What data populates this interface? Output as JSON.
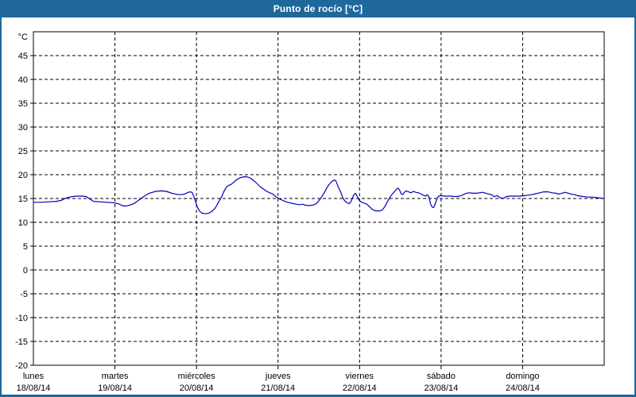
{
  "window": {
    "title": "Punto de rocío [°C]"
  },
  "colors": {
    "chrome": "#1e689c",
    "title_text": "#ffffff",
    "background": "#ffffff",
    "axis": "#000000",
    "grid": "#000000",
    "text": "#000000",
    "line": "#0000bb"
  },
  "chart_data": {
    "type": "line",
    "title": "Punto de rocío [°C]",
    "y_unit": "°C",
    "ylim": [
      -20,
      50
    ],
    "yticks": [
      45,
      40,
      35,
      30,
      25,
      20,
      15,
      10,
      5,
      0,
      -5,
      -10,
      -15,
      -20
    ],
    "xlim_days": [
      0,
      7
    ],
    "grid": "dashed",
    "legend": "none",
    "days": [
      {
        "name": "lunes",
        "date": "18/08/14"
      },
      {
        "name": "martes",
        "date": "19/08/14"
      },
      {
        "name": "miércoles",
        "date": "20/08/14"
      },
      {
        "name": "jueves",
        "date": "21/08/14"
      },
      {
        "name": "viernes",
        "date": "22/08/14"
      },
      {
        "name": "sábado",
        "date": "23/08/14"
      },
      {
        "name": "domingo",
        "date": "24/08/14"
      }
    ],
    "series": [
      {
        "name": "Punto de rocío",
        "color": "#0000bb",
        "points": [
          [
            0.0,
            14.2
          ],
          [
            0.08,
            14.2
          ],
          [
            0.18,
            14.3
          ],
          [
            0.28,
            14.4
          ],
          [
            0.34,
            14.6
          ],
          [
            0.4,
            15.1
          ],
          [
            0.47,
            15.4
          ],
          [
            0.54,
            15.5
          ],
          [
            0.6,
            15.5
          ],
          [
            0.65,
            15.4
          ],
          [
            0.69,
            14.9
          ],
          [
            0.74,
            14.4
          ],
          [
            0.82,
            14.3
          ],
          [
            0.91,
            14.2
          ],
          [
            0.99,
            14.1
          ],
          [
            1.04,
            13.9
          ],
          [
            1.09,
            13.5
          ],
          [
            1.13,
            13.4
          ],
          [
            1.18,
            13.6
          ],
          [
            1.23,
            13.9
          ],
          [
            1.28,
            14.5
          ],
          [
            1.33,
            15.1
          ],
          [
            1.37,
            15.6
          ],
          [
            1.42,
            16.1
          ],
          [
            1.5,
            16.5
          ],
          [
            1.57,
            16.6
          ],
          [
            1.63,
            16.5
          ],
          [
            1.7,
            16.1
          ],
          [
            1.75,
            15.9
          ],
          [
            1.8,
            15.8
          ],
          [
            1.85,
            15.9
          ],
          [
            1.9,
            16.3
          ],
          [
            1.93,
            16.4
          ],
          [
            1.95,
            16.2
          ],
          [
            1.98,
            14.8
          ],
          [
            2.01,
            13.2
          ],
          [
            2.04,
            12.3
          ],
          [
            2.07,
            11.9
          ],
          [
            2.11,
            11.8
          ],
          [
            2.15,
            11.9
          ],
          [
            2.19,
            12.3
          ],
          [
            2.23,
            13.0
          ],
          [
            2.27,
            14.2
          ],
          [
            2.31,
            15.4
          ],
          [
            2.34,
            16.6
          ],
          [
            2.37,
            17.5
          ],
          [
            2.4,
            17.8
          ],
          [
            2.42,
            17.9
          ],
          [
            2.45,
            18.3
          ],
          [
            2.48,
            18.8
          ],
          [
            2.51,
            19.1
          ],
          [
            2.54,
            19.4
          ],
          [
            2.57,
            19.5
          ],
          [
            2.6,
            19.6
          ],
          [
            2.63,
            19.5
          ],
          [
            2.66,
            19.3
          ],
          [
            2.69,
            18.9
          ],
          [
            2.72,
            18.5
          ],
          [
            2.75,
            18.0
          ],
          [
            2.78,
            17.5
          ],
          [
            2.82,
            17.0
          ],
          [
            2.86,
            16.5
          ],
          [
            2.9,
            16.2
          ],
          [
            2.94,
            15.9
          ],
          [
            2.97,
            15.4
          ],
          [
            3.02,
            14.9
          ],
          [
            3.07,
            14.5
          ],
          [
            3.12,
            14.2
          ],
          [
            3.17,
            14.0
          ],
          [
            3.22,
            13.8
          ],
          [
            3.26,
            13.7
          ],
          [
            3.3,
            13.8
          ],
          [
            3.34,
            13.6
          ],
          [
            3.38,
            13.5
          ],
          [
            3.42,
            13.6
          ],
          [
            3.46,
            13.8
          ],
          [
            3.49,
            14.3
          ],
          [
            3.53,
            15.2
          ],
          [
            3.57,
            16.3
          ],
          [
            3.6,
            17.3
          ],
          [
            3.63,
            18.0
          ],
          [
            3.65,
            18.4
          ],
          [
            3.67,
            18.7
          ],
          [
            3.69,
            18.9
          ],
          [
            3.71,
            18.7
          ],
          [
            3.73,
            17.8
          ],
          [
            3.75,
            17.0
          ],
          [
            3.77,
            16.3
          ],
          [
            3.79,
            15.3
          ],
          [
            3.81,
            14.7
          ],
          [
            3.83,
            14.3
          ],
          [
            3.85,
            14.1
          ],
          [
            3.87,
            13.9
          ],
          [
            3.89,
            14.2
          ],
          [
            3.91,
            15.0
          ],
          [
            3.93,
            15.8
          ],
          [
            3.95,
            16.1
          ],
          [
            3.97,
            15.5
          ],
          [
            3.99,
            14.8
          ],
          [
            4.01,
            14.4
          ],
          [
            4.03,
            14.2
          ],
          [
            4.06,
            14.0
          ],
          [
            4.09,
            13.8
          ],
          [
            4.12,
            13.3
          ],
          [
            4.15,
            12.8
          ],
          [
            4.18,
            12.5
          ],
          [
            4.21,
            12.4
          ],
          [
            4.25,
            12.4
          ],
          [
            4.28,
            12.6
          ],
          [
            4.31,
            13.3
          ],
          [
            4.34,
            14.3
          ],
          [
            4.37,
            15.2
          ],
          [
            4.4,
            15.9
          ],
          [
            4.43,
            16.5
          ],
          [
            4.45,
            16.9
          ],
          [
            4.47,
            17.2
          ],
          [
            4.49,
            16.8
          ],
          [
            4.51,
            16.0
          ],
          [
            4.53,
            15.8
          ],
          [
            4.55,
            16.3
          ],
          [
            4.57,
            16.6
          ],
          [
            4.6,
            16.4
          ],
          [
            4.63,
            16.2
          ],
          [
            4.66,
            16.5
          ],
          [
            4.69,
            16.3
          ],
          [
            4.72,
            16.2
          ],
          [
            4.75,
            16.0
          ],
          [
            4.78,
            15.7
          ],
          [
            4.81,
            15.5
          ],
          [
            4.83,
            15.8
          ],
          [
            4.85,
            15.4
          ],
          [
            4.87,
            13.9
          ],
          [
            4.89,
            13.2
          ],
          [
            4.91,
            13.1
          ],
          [
            4.93,
            14.0
          ],
          [
            4.95,
            15.0
          ],
          [
            4.97,
            15.5
          ],
          [
            5.0,
            15.6
          ],
          [
            5.04,
            15.5
          ],
          [
            5.09,
            15.5
          ],
          [
            5.13,
            15.5
          ],
          [
            5.18,
            15.4
          ],
          [
            5.23,
            15.5
          ],
          [
            5.27,
            15.8
          ],
          [
            5.31,
            16.1
          ],
          [
            5.35,
            16.2
          ],
          [
            5.39,
            16.1
          ],
          [
            5.43,
            16.1
          ],
          [
            5.47,
            16.2
          ],
          [
            5.51,
            16.3
          ],
          [
            5.55,
            16.1
          ],
          [
            5.59,
            15.9
          ],
          [
            5.62,
            15.8
          ],
          [
            5.65,
            15.4
          ],
          [
            5.69,
            15.6
          ],
          [
            5.72,
            15.2
          ],
          [
            5.76,
            15.0
          ],
          [
            5.8,
            15.4
          ],
          [
            5.84,
            15.5
          ],
          [
            5.88,
            15.5
          ],
          [
            5.92,
            15.5
          ],
          [
            5.97,
            15.5
          ],
          [
            6.02,
            15.6
          ],
          [
            6.07,
            15.7
          ],
          [
            6.11,
            15.8
          ],
          [
            6.16,
            16.0
          ],
          [
            6.21,
            16.2
          ],
          [
            6.26,
            16.4
          ],
          [
            6.31,
            16.4
          ],
          [
            6.36,
            16.2
          ],
          [
            6.41,
            16.1
          ],
          [
            6.44,
            15.9
          ],
          [
            6.48,
            16.1
          ],
          [
            6.52,
            16.3
          ],
          [
            6.56,
            16.1
          ],
          [
            6.6,
            15.9
          ],
          [
            6.64,
            15.8
          ],
          [
            6.67,
            15.6
          ],
          [
            6.71,
            15.5
          ],
          [
            6.75,
            15.4
          ],
          [
            6.8,
            15.3
          ],
          [
            6.85,
            15.3
          ],
          [
            6.9,
            15.2
          ],
          [
            6.95,
            15.1
          ],
          [
            7.0,
            15.0
          ]
        ]
      }
    ]
  }
}
